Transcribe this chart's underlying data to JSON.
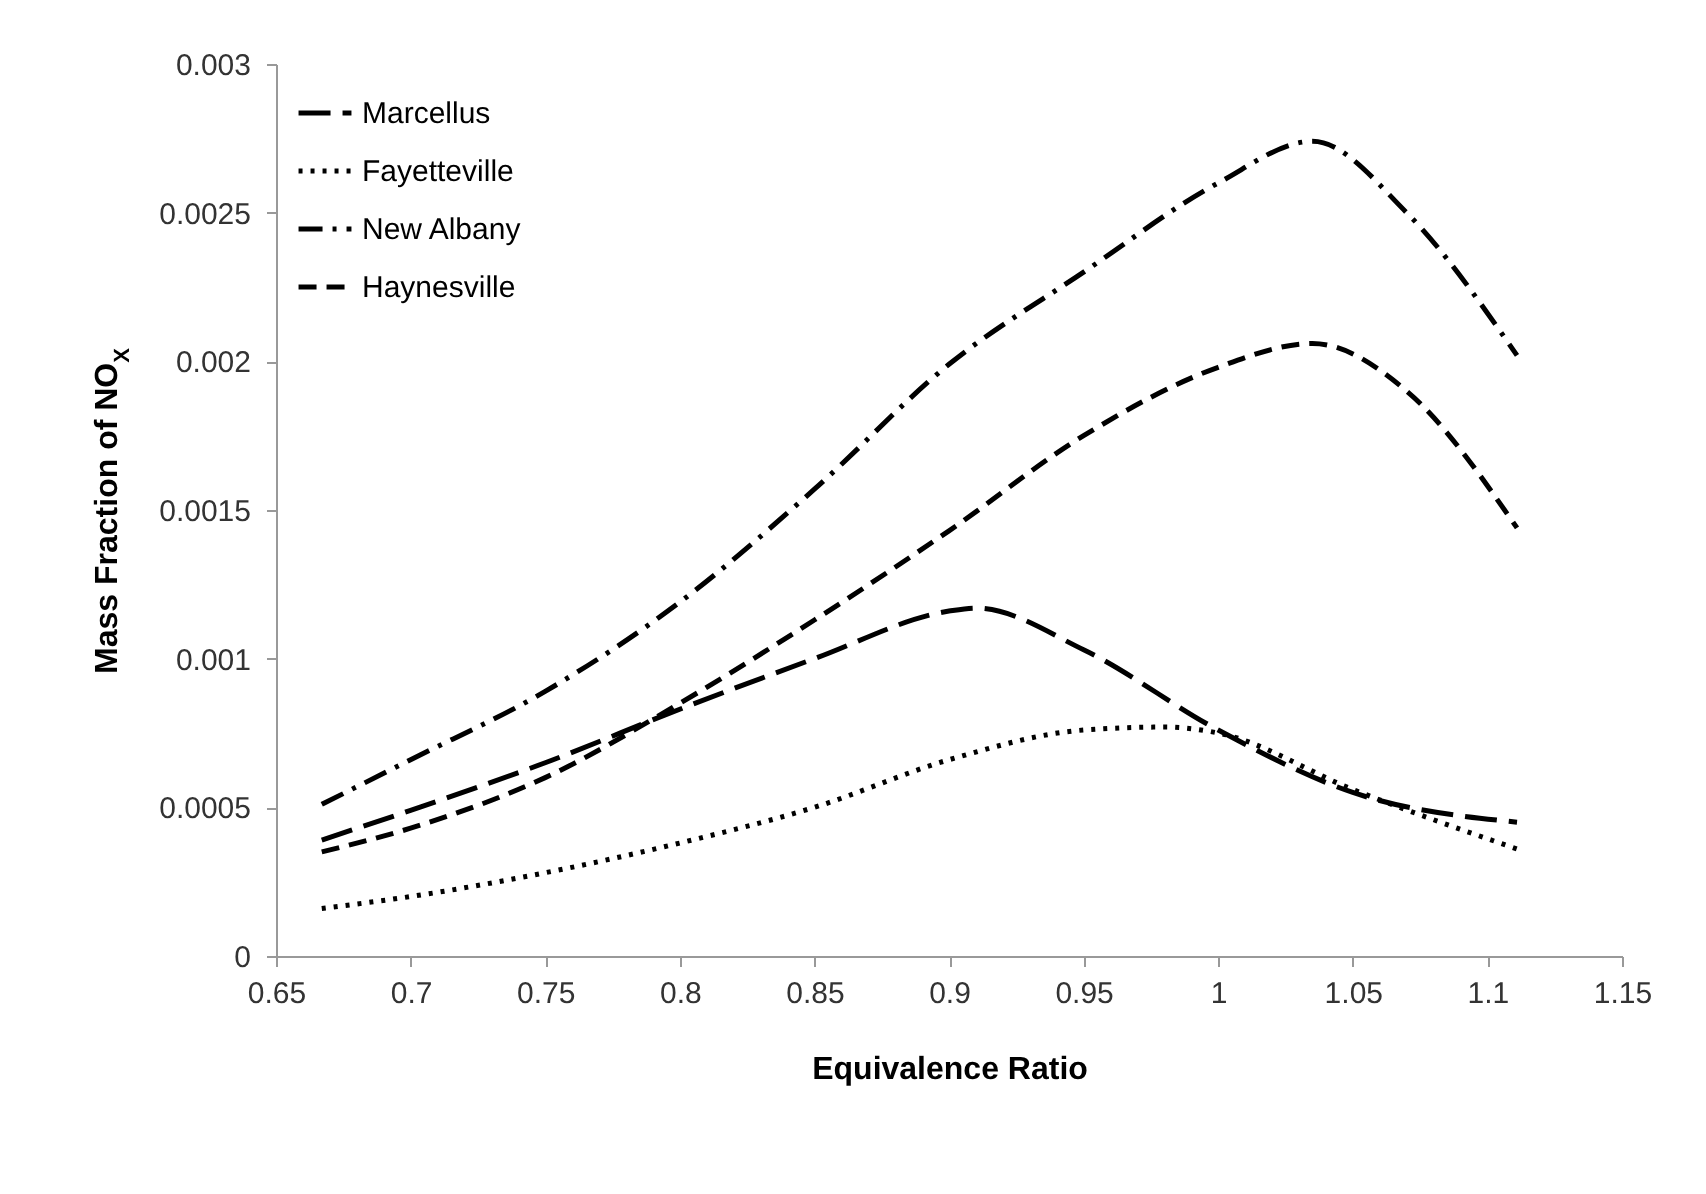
{
  "chart_data": {
    "type": "line",
    "xlabel": "Equivalence Ratio",
    "ylabel": "Mass Fraction of NO$_{X}$",
    "xlim": [
      0.65,
      1.15
    ],
    "xticks": [
      0.65,
      0.7,
      0.75,
      0.8,
      0.85,
      0.9,
      0.95,
      1,
      1.05,
      1.1,
      1.15
    ],
    "ylim": [
      0,
      0.003
    ],
    "yticks": [
      0,
      0.0005,
      0.001,
      0.0015,
      0.002,
      0.0025,
      0.003
    ],
    "grid": false,
    "legend": "top left",
    "marker": "none",
    "series": [
      {
        "name": "Marcellus",
        "color": "#000000",
        "line_style": "longdash",
        "x": [
          0.667,
          0.7,
          0.75,
          0.8,
          0.85,
          0.9,
          0.91,
          0.95,
          1.0,
          1.05,
          1.111
        ],
        "values": [
          0.00039,
          0.00049,
          0.00065,
          0.00083,
          0.001,
          0.00116,
          0.00117,
          0.00103,
          0.00076,
          0.00055,
          0.00045
        ]
      },
      {
        "name": "Fayetteville",
        "color": "#000000",
        "line_style": "dotted",
        "x": [
          0.667,
          0.7,
          0.75,
          0.8,
          0.85,
          0.9,
          0.95,
          0.98,
          1.0,
          1.05,
          1.111
        ],
        "values": [
          0.00016,
          0.0002,
          0.00028,
          0.00038,
          0.0005,
          0.00066,
          0.00076,
          0.00077,
          0.00075,
          0.00056,
          0.00036
        ]
      },
      {
        "name": "New Albany",
        "color": "#000000",
        "line_style": "dashdot",
        "x": [
          0.667,
          0.7,
          0.75,
          0.8,
          0.85,
          0.9,
          0.95,
          1.0,
          1.035,
          1.07,
          1.111
        ],
        "values": [
          0.00051,
          0.00066,
          0.00089,
          0.00119,
          0.00157,
          0.00199,
          0.0023,
          0.0026,
          0.00274,
          0.0025,
          0.00202
        ]
      },
      {
        "name": "Haynesville",
        "color": "#000000",
        "line_style": "dashed",
        "x": [
          0.667,
          0.7,
          0.75,
          0.8,
          0.85,
          0.9,
          0.95,
          1.0,
          1.035,
          1.07,
          1.111
        ],
        "values": [
          0.00035,
          0.00043,
          0.0006,
          0.00085,
          0.00113,
          0.00143,
          0.00175,
          0.00198,
          0.00206,
          0.0019,
          0.00144
        ]
      }
    ]
  }
}
